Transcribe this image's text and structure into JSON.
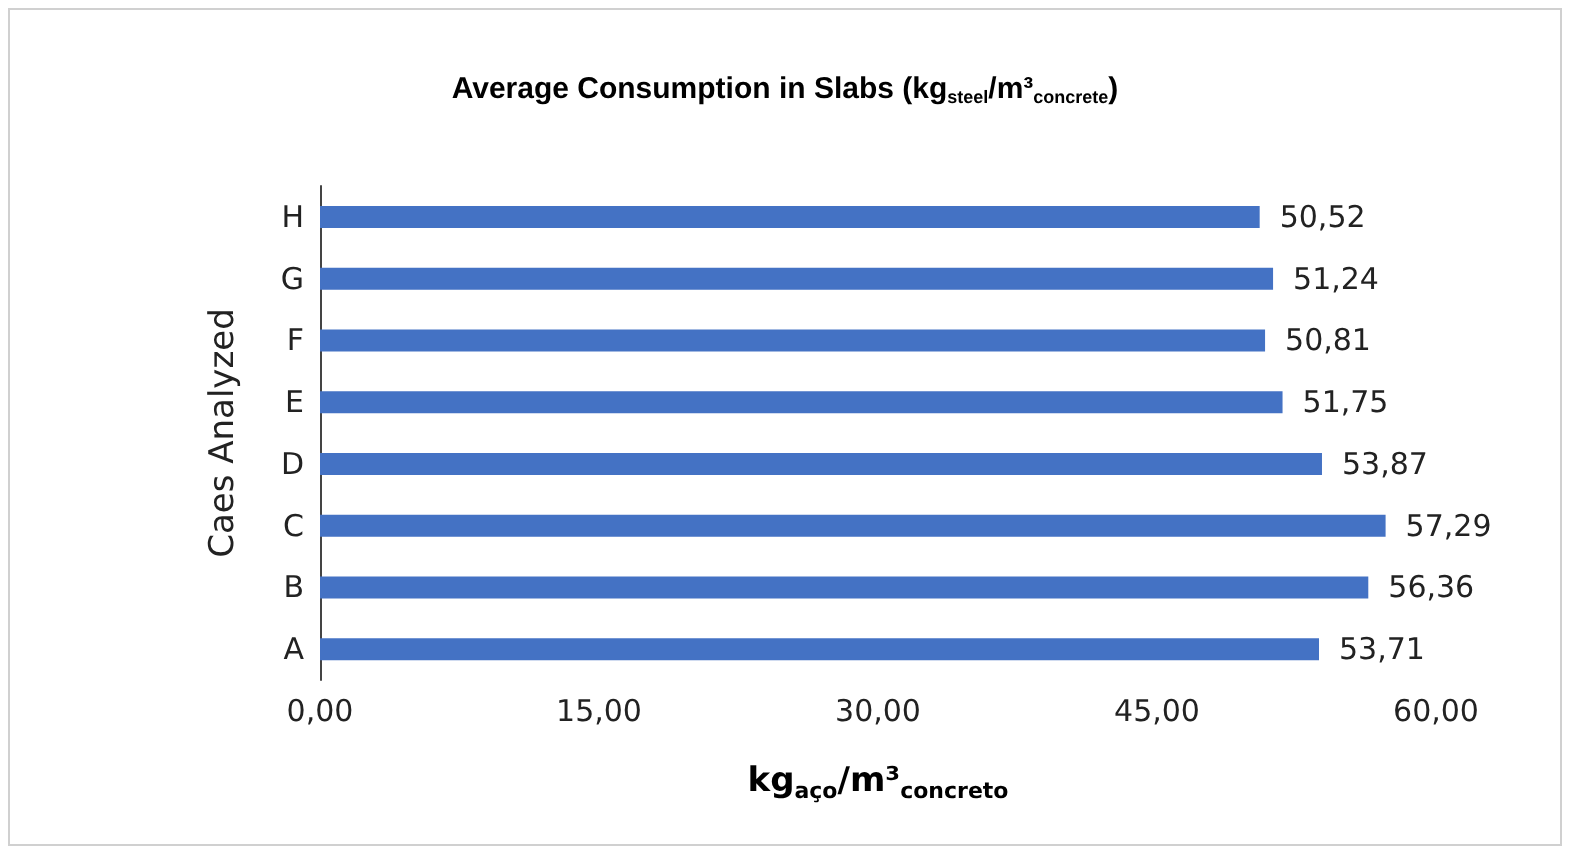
{
  "chart_data": {
    "type": "bar",
    "orientation": "horizontal",
    "title": "Average Consumption in Slabs (kg$_{steel}$/m³$_{concrete}$)",
    "xlabel": "kg$_{aço}$/m³$_{concreto}$",
    "ylabel": "Caes Analyzed",
    "categories": [
      "H",
      "G",
      "F",
      "E",
      "D",
      "C",
      "B",
      "A"
    ],
    "values": [
      50.52,
      51.24,
      50.81,
      51.75,
      53.87,
      57.29,
      56.36,
      53.71
    ],
    "value_labels": [
      "50,52",
      "51,24",
      "50,81",
      "51,75",
      "53,87",
      "57,29",
      "56,36",
      "53,71"
    ],
    "color": "#4472c4",
    "xlim": [
      0,
      60
    ],
    "xticks": [
      {
        "value": 0,
        "label": "0,00"
      },
      {
        "value": 15,
        "label": "15,00"
      },
      {
        "value": 30,
        "label": "30,00"
      },
      {
        "value": 45,
        "label": "45,00"
      },
      {
        "value": 60,
        "label": "60,00"
      }
    ],
    "grid": false
  }
}
